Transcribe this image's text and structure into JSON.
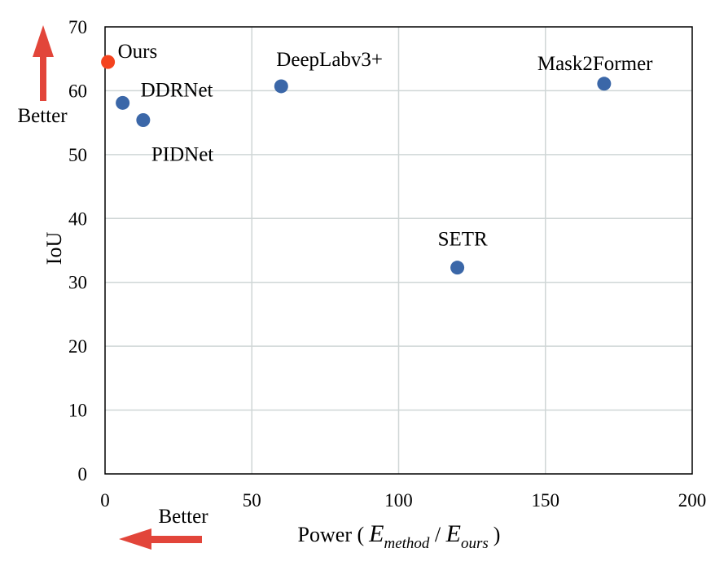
{
  "chart_data": {
    "type": "scatter",
    "title": "",
    "xlabel": {
      "prefix": "Power (",
      "e1": "E",
      "sub1": "method",
      "slash": " / ",
      "e2": "E",
      "sub2": "ours",
      "suffix": ")"
    },
    "ylabel": "IoU",
    "xlim": [
      0,
      200
    ],
    "ylim": [
      0,
      70
    ],
    "xticks": [
      0,
      50,
      100,
      150,
      200
    ],
    "yticks": [
      0,
      10,
      20,
      30,
      40,
      50,
      60,
      70
    ],
    "grid": true,
    "points": [
      {
        "label": "Ours",
        "x": 1,
        "y": 64.5,
        "color": "#f4431e"
      },
      {
        "label": "DDRNet",
        "x": 6,
        "y": 58.1,
        "color": "#3b67a8"
      },
      {
        "label": "PIDNet",
        "x": 13,
        "y": 55.4,
        "color": "#3b67a8"
      },
      {
        "label": "DeepLabv3+",
        "x": 60,
        "y": 60.7,
        "color": "#3b67a8"
      },
      {
        "label": "SETR",
        "x": 120,
        "y": 32.3,
        "color": "#3b67a8"
      },
      {
        "label": "Mask2Former",
        "x": 170,
        "y": 61.1,
        "color": "#3b67a8"
      }
    ],
    "annotations": {
      "y_better": "Better",
      "x_better": "Better",
      "arrow_color": "#e2453a"
    }
  }
}
